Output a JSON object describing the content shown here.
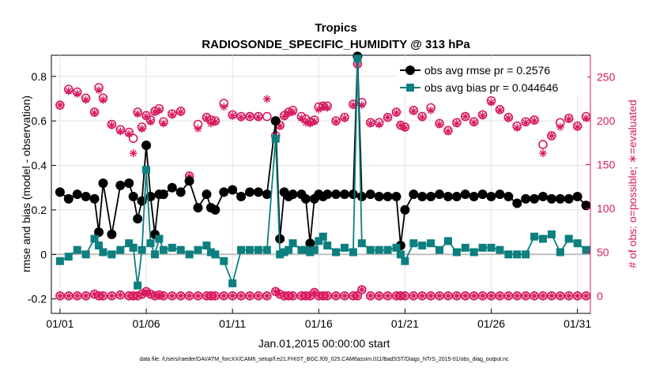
{
  "chart_data": {
    "type": "line",
    "title": "Tropics",
    "subtitle": "RADIOSONDE_SPECIFIC_HUMIDITY @ 313 hPa",
    "xlabel": "Jan.01,2015 00:00:00 start",
    "ylabel_left": "rmse and bias (model - observation)",
    "ylabel_right": "# of obs: o=possible; ∗=evaluated",
    "footnote": "data file: /Users/raeder/DAI/ATM_forcXX/CAM6_setup/f.e21.FHIST_BGC.f09_025.CAM6assim.011/BadSST/Diags_NTrS_2015-01/obs_diag_output.nc",
    "xlim": [
      0.5,
      31.75
    ],
    "ylim_left": [
      -0.265,
      0.895
    ],
    "ylim_right": [
      -20,
      275
    ],
    "x_ticks": [
      1,
      6,
      11,
      16,
      21,
      26,
      31
    ],
    "x_tick_labels": [
      "01/01",
      "01/06",
      "01/11",
      "01/16",
      "01/21",
      "01/26",
      "01/31"
    ],
    "y_ticks_left": [
      -0.2,
      0,
      0.2,
      0.4,
      0.6,
      0.8
    ],
    "y_tick_labels_left": [
      "-0.2",
      "0",
      "0.2",
      "0.4",
      "0.6",
      "0.8"
    ],
    "y_ticks_right": [
      0,
      50,
      100,
      150,
      200,
      250
    ],
    "y_tick_labels_right": [
      "0",
      "50",
      "100",
      "150",
      "200",
      "250"
    ],
    "legend_position": "top-right",
    "colors": {
      "rmse": "#000000",
      "bias": "#0d7f7f",
      "counts": "#d81b60",
      "zero_line": "#bfbfbf"
    },
    "series": [
      {
        "name": "obs avg rmse pr = 0.2576",
        "axis": "left",
        "marker": "circle",
        "x": [
          1,
          1.5,
          2,
          2.5,
          3,
          3.25,
          3.5,
          4,
          4.5,
          5,
          5.25,
          5.5,
          5.75,
          6,
          6.25,
          6.5,
          6.75,
          7,
          7.5,
          8,
          8.5,
          9,
          9.5,
          9.75,
          10,
          10.5,
          11,
          11.5,
          12,
          12.5,
          13,
          13.5,
          13.75,
          14,
          14.25,
          14.5,
          15,
          15.25,
          15.5,
          15.75,
          16,
          16.25,
          16.5,
          17,
          17.5,
          18,
          18.25,
          18.5,
          19,
          19.5,
          20,
          20.5,
          20.75,
          21,
          21.5,
          22,
          22.5,
          23,
          23.5,
          24,
          24.5,
          25,
          25.5,
          26,
          26.5,
          27,
          27.5,
          28,
          28.5,
          29,
          29.5,
          30,
          30.5,
          31,
          31.5
        ],
        "values": [
          0.28,
          0.25,
          0.27,
          0.26,
          0.25,
          0.1,
          0.32,
          0.09,
          0.31,
          0.32,
          0.26,
          0.16,
          0.24,
          0.49,
          0.26,
          0.09,
          0.27,
          0.27,
          0.3,
          0.28,
          0.33,
          0.21,
          0.27,
          0.21,
          0.2,
          0.28,
          0.29,
          0.26,
          0.28,
          0.28,
          0.27,
          0.6,
          0.07,
          0.28,
          0.26,
          0.27,
          0.27,
          0.25,
          0.05,
          0.25,
          0.27,
          0.26,
          0.27,
          0.27,
          0.27,
          0.27,
          0.89,
          0.26,
          0.27,
          0.26,
          0.26,
          0.26,
          0.04,
          0.2,
          0.27,
          0.26,
          0.26,
          0.27,
          0.26,
          0.26,
          0.27,
          0.26,
          0.27,
          0.26,
          0.27,
          0.26,
          0.23,
          0.25,
          0.25,
          0.26,
          0.25,
          0.25,
          0.25,
          0.26,
          0.22
        ]
      },
      {
        "name": "obs avg bias pr = 0.044646",
        "axis": "left",
        "marker": "square",
        "x": [
          1,
          1.5,
          2,
          2.5,
          3,
          3.25,
          3.5,
          4,
          4.5,
          5,
          5.25,
          5.5,
          5.75,
          6,
          6.25,
          6.5,
          6.75,
          7,
          7.5,
          8,
          8.5,
          9,
          9.5,
          9.75,
          10,
          10.5,
          11,
          11.5,
          12,
          12.5,
          13,
          13.5,
          13.75,
          14,
          14.25,
          14.5,
          15,
          15.25,
          15.5,
          15.75,
          16,
          16.25,
          16.5,
          17,
          17.5,
          18,
          18.25,
          18.5,
          19,
          19.5,
          20,
          20.5,
          20.75,
          21,
          21.5,
          22,
          22.5,
          23,
          23.5,
          24,
          24.5,
          25,
          25.5,
          26,
          26.5,
          27,
          27.5,
          28,
          28.5,
          29,
          29.5,
          30,
          30.5,
          31,
          31.5
        ],
        "values": [
          -0.03,
          -0.01,
          0.02,
          0.0,
          0.07,
          0.04,
          0.01,
          0.0,
          0.02,
          0.05,
          0.03,
          -0.14,
          0.02,
          0.38,
          0.05,
          0.0,
          0.07,
          0.02,
          0.03,
          0.02,
          0.0,
          0.02,
          0.04,
          0.01,
          0.0,
          -0.03,
          -0.13,
          0.02,
          0.02,
          0.02,
          0.02,
          0.52,
          0.0,
          0.01,
          0.02,
          0.05,
          0.02,
          0.02,
          0.01,
          0.02,
          0.06,
          0.08,
          0.04,
          0.01,
          0.03,
          0.01,
          0.88,
          0.05,
          0.02,
          0.02,
          0.02,
          0.03,
          0.0,
          -0.03,
          0.05,
          0.04,
          0.05,
          0.02,
          0.06,
          0.01,
          0.03,
          0.01,
          0.03,
          0.03,
          0.02,
          0.0,
          0.0,
          0.0,
          0.08,
          0.07,
          0.09,
          0.01,
          0.07,
          0.05,
          0.02
        ]
      },
      {
        "name": "# of obs possible (upper)",
        "axis": "right",
        "marker": "circle-open",
        "x": [
          1,
          1.5,
          2,
          2.5,
          3,
          3.25,
          3.5,
          4,
          4.5,
          5,
          5.25,
          5.5,
          5.75,
          6,
          6.25,
          6.5,
          6.75,
          7,
          7.5,
          8,
          8.5,
          9,
          9.5,
          9.75,
          10,
          10.5,
          11,
          11.5,
          12,
          12.5,
          13,
          13.5,
          13.75,
          14,
          14.25,
          14.5,
          15,
          15.25,
          15.5,
          15.75,
          16,
          16.25,
          16.5,
          17,
          17.5,
          18,
          18.25,
          18.5,
          19,
          19.5,
          20,
          20.5,
          20.75,
          21,
          21.5,
          22,
          22.5,
          23,
          23.5,
          24,
          24.5,
          25,
          25.5,
          26,
          26.5,
          27,
          27.5,
          28,
          28.5,
          29,
          29.5,
          30,
          30.5,
          31,
          31.5
        ],
        "values": [
          218,
          236,
          233,
          226,
          210,
          238,
          226,
          196,
          190,
          187,
          180,
          210,
          193,
          206,
          201,
          211,
          214,
          199,
          208,
          211,
          137,
          196,
          204,
          201,
          200,
          220,
          207,
          205,
          205,
          205,
          205,
          183,
          195,
          206,
          210,
          212,
          205,
          202,
          199,
          201,
          216,
          217,
          217,
          200,
          204,
          219,
          265,
          221,
          198,
          198,
          204,
          210,
          195,
          193,
          212,
          205,
          215,
          197,
          189,
          198,
          205,
          199,
          207,
          223,
          213,
          204,
          194,
          199,
          201,
          173,
          183,
          198,
          203,
          194,
          205
        ]
      },
      {
        "name": "# of obs evaluated (upper)",
        "axis": "right",
        "marker": "asterisk",
        "x": [
          1,
          1.5,
          2,
          2.5,
          3,
          3.25,
          3.5,
          4,
          4.5,
          5,
          5.25,
          5.5,
          5.75,
          6,
          6.25,
          6.5,
          6.75,
          7,
          7.5,
          8,
          8.5,
          9,
          9.5,
          9.75,
          10,
          10.5,
          11,
          11.5,
          12,
          12.5,
          13,
          13.5,
          13.75,
          14,
          14.25,
          14.5,
          15,
          15.25,
          15.5,
          15.75,
          16,
          16.25,
          16.5,
          17,
          17.5,
          18,
          18.25,
          18.5,
          19,
          19.5,
          20,
          20.5,
          20.75,
          21,
          21.5,
          22,
          22.5,
          23,
          23.5,
          24,
          24.5,
          25,
          25.5,
          26,
          26.5,
          27,
          27.5,
          28,
          28.5,
          29,
          29.5,
          30,
          30.5,
          31,
          31.5
        ],
        "values": [
          218,
          234,
          231,
          224,
          209,
          235,
          224,
          195,
          188,
          185,
          163,
          208,
          191,
          205,
          199,
          210,
          212,
          197,
          207,
          210,
          137,
          191,
          203,
          197,
          199,
          216,
          206,
          204,
          205,
          204,
          225,
          180,
          194,
          205,
          209,
          210,
          203,
          198,
          197,
          199,
          213,
          216,
          215,
          199,
          203,
          218,
          265,
          218,
          197,
          196,
          204,
          209,
          195,
          192,
          211,
          204,
          212,
          196,
          188,
          197,
          205,
          198,
          206,
          221,
          212,
          203,
          192,
          198,
          200,
          163,
          183,
          193,
          202,
          193,
          203
        ]
      },
      {
        "name": "# of obs possible (lower)",
        "axis": "right",
        "marker": "circle-open",
        "x": [
          1,
          1.5,
          2,
          2.5,
          3,
          3.25,
          3.5,
          4,
          4.5,
          5,
          5.25,
          5.5,
          5.75,
          6,
          6.25,
          6.5,
          6.75,
          7,
          7.5,
          8,
          8.5,
          9,
          9.5,
          9.75,
          10,
          10.5,
          11,
          11.5,
          12,
          12.5,
          13,
          13.5,
          13.75,
          14,
          14.25,
          14.5,
          15,
          15.25,
          15.5,
          15.75,
          16,
          16.25,
          16.5,
          17,
          17.5,
          18,
          18.25,
          18.5,
          19,
          19.5,
          20,
          20.5,
          20.75,
          21,
          21.5,
          22,
          22.5,
          23,
          23.5,
          24,
          24.5,
          25,
          25.5,
          26,
          26.5,
          27,
          27.5,
          28,
          28.5,
          29,
          29.5,
          30,
          30.5,
          31,
          31.5
        ],
        "values": [
          0,
          0,
          0,
          0,
          2,
          0,
          0,
          0,
          1,
          0,
          0,
          0,
          2,
          5,
          2,
          0,
          1,
          0,
          0,
          0,
          0,
          0,
          0,
          0,
          0,
          0,
          0,
          0,
          0,
          0,
          0,
          5,
          2,
          0,
          0,
          0,
          0,
          0,
          0,
          4,
          0,
          0,
          0,
          0,
          0,
          0,
          0,
          7,
          0,
          0,
          0,
          0,
          0,
          0,
          0,
          0,
          0,
          0,
          0,
          0,
          0,
          0,
          0,
          0,
          0,
          0,
          0,
          0,
          0,
          0,
          0,
          0,
          0,
          0,
          0
        ]
      },
      {
        "name": "# of obs evaluated (lower)",
        "axis": "right",
        "marker": "asterisk",
        "x": [
          1,
          1.5,
          2,
          2.5,
          3,
          3.25,
          3.5,
          4,
          4.5,
          5,
          5.25,
          5.5,
          5.75,
          6,
          6.25,
          6.5,
          6.75,
          7,
          7.5,
          8,
          8.5,
          9,
          9.5,
          9.75,
          10,
          10.5,
          11,
          11.5,
          12,
          12.5,
          13,
          13.5,
          13.75,
          14,
          14.25,
          14.5,
          15,
          15.25,
          15.5,
          15.75,
          16,
          16.25,
          16.5,
          17,
          17.5,
          18,
          18.25,
          18.5,
          19,
          19.5,
          20,
          20.5,
          20.75,
          21,
          21.5,
          22,
          22.5,
          23,
          23.5,
          24,
          24.5,
          25,
          25.5,
          26,
          26.5,
          27,
          27.5,
          28,
          28.5,
          29,
          29.5,
          30,
          30.5,
          31,
          31.5
        ],
        "values": [
          0,
          0,
          0,
          0,
          2,
          0,
          0,
          0,
          1,
          0,
          0,
          0,
          2,
          5,
          2,
          0,
          1,
          0,
          0,
          0,
          0,
          0,
          0,
          0,
          0,
          0,
          0,
          0,
          0,
          0,
          0,
          5,
          2,
          0,
          0,
          0,
          0,
          0,
          0,
          4,
          0,
          0,
          0,
          0,
          0,
          0,
          0,
          7,
          0,
          0,
          0,
          0,
          0,
          0,
          0,
          0,
          0,
          0,
          0,
          0,
          0,
          0,
          0,
          0,
          0,
          0,
          0,
          0,
          0,
          0,
          0,
          0,
          0,
          0,
          0
        ]
      }
    ]
  }
}
